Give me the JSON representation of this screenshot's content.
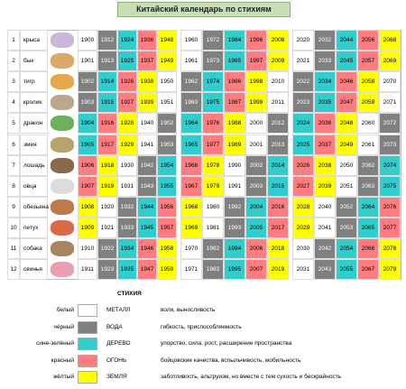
{
  "title": "Китайский календарь по стихиям",
  "rows": [
    {
      "num": 1,
      "animal": "крыса",
      "years": [
        1900,
        1912,
        1924,
        1936,
        1948,
        1960,
        1972,
        1984,
        1996,
        2008,
        2020,
        2032,
        2044,
        2056,
        2068
      ]
    },
    {
      "num": 2,
      "animal": "бык",
      "years": [
        1901,
        1913,
        1925,
        1937,
        1949,
        1961,
        1973,
        1985,
        1997,
        2009,
        2021,
        2033,
        2045,
        2057,
        2069
      ]
    },
    {
      "num": 3,
      "animal": "тигр",
      "years": [
        1902,
        1914,
        1926,
        1938,
        1950,
        1962,
        1974,
        1986,
        1998,
        2010,
        2022,
        2034,
        2046,
        2058,
        2070
      ]
    },
    {
      "num": 4,
      "animal": "кролик",
      "years": [
        1903,
        1915,
        1927,
        1939,
        1951,
        1963,
        1975,
        1987,
        1999,
        2011,
        2023,
        2035,
        2047,
        2059,
        2071
      ]
    },
    {
      "num": 5,
      "animal": "дракон",
      "years": [
        1904,
        1916,
        1928,
        1940,
        1952,
        1964,
        1976,
        1988,
        2000,
        2012,
        2024,
        2036,
        2048,
        2060,
        2072
      ]
    },
    {
      "num": 6,
      "animal": "змея",
      "years": [
        1905,
        1917,
        1929,
        1941,
        1953,
        1965,
        1977,
        1989,
        2001,
        2013,
        2025,
        2037,
        2049,
        2061,
        2073
      ]
    },
    {
      "num": 7,
      "animal": "лошадь",
      "years": [
        1906,
        1918,
        1930,
        1942,
        1954,
        1966,
        1978,
        1990,
        2002,
        2014,
        2026,
        2038,
        2050,
        2062,
        2074
      ]
    },
    {
      "num": 8,
      "animal": "овца",
      "years": [
        1907,
        1919,
        1931,
        1943,
        1955,
        1967,
        1979,
        1991,
        2003,
        2015,
        2027,
        2039,
        2051,
        2063,
        2075
      ]
    },
    {
      "num": 9,
      "animal": "обезьяна",
      "years": [
        1908,
        1920,
        1932,
        1944,
        1956,
        1968,
        1980,
        1992,
        2004,
        2016,
        2028,
        2040,
        2052,
        2064,
        2076
      ]
    },
    {
      "num": 10,
      "animal": "петух",
      "years": [
        1909,
        1921,
        1933,
        1945,
        1957,
        1969,
        1981,
        1993,
        2005,
        2017,
        2029,
        2041,
        2053,
        2065,
        2077
      ]
    },
    {
      "num": 11,
      "animal": "собака",
      "years": [
        1910,
        1922,
        1934,
        1946,
        1958,
        1970,
        1982,
        1994,
        2006,
        2018,
        2030,
        2042,
        2054,
        2066,
        2078
      ]
    },
    {
      "num": 12,
      "animal": "свинья",
      "years": [
        1911,
        1923,
        1935,
        1947,
        1959,
        1971,
        1983,
        1995,
        2007,
        2019,
        2031,
        2043,
        2055,
        2067,
        2079
      ]
    }
  ],
  "legend": {
    "title": "СТИХИЯ",
    "items": [
      {
        "color_name": "белый",
        "element": "МЕТАЛЛ",
        "description": "воля, выносливость",
        "color": "#ffffff"
      },
      {
        "color_name": "чёрный",
        "element": "ВОДА",
        "description": "гибкость, приспособляемость",
        "color": "#808080"
      },
      {
        "color_name": "сине-зелёный",
        "element": "ДЕРЕВО",
        "description": "упорство, сила, рост, расширение пространства",
        "color": "#33cccc"
      },
      {
        "color_name": "красный",
        "element": "ОГОНЬ",
        "description": "бойцовские качества, вспыльчивость, мобильность",
        "color": "#ff7c80"
      },
      {
        "color_name": "жёлтый",
        "element": "ЗЕМЛЯ",
        "description": "заботливость, альтруизм, но вместе с тем сухость и бескрайность",
        "color": "#ffff00"
      }
    ]
  }
}
